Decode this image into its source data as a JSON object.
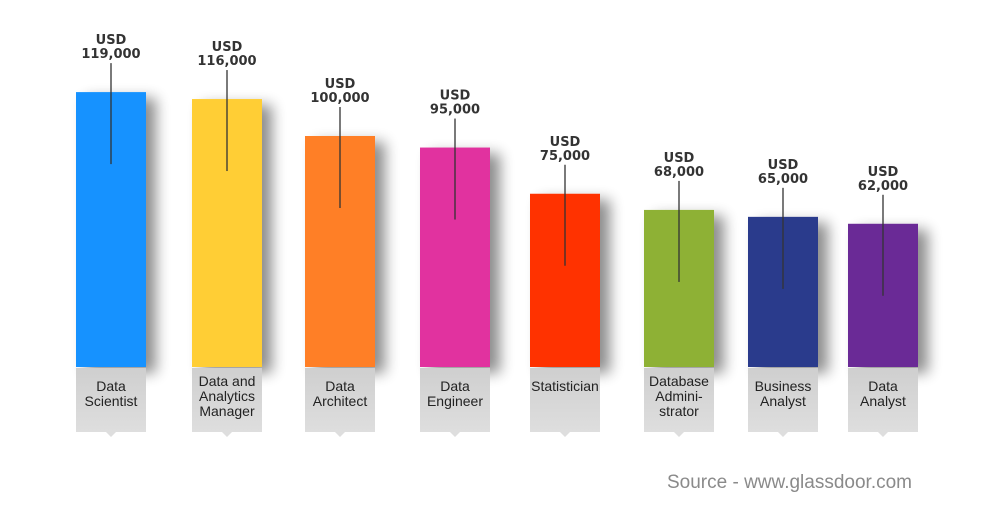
{
  "chart_data": {
    "type": "bar",
    "categories": [
      "Data Scientist",
      "Data and Analytics Manager",
      "Data Architect",
      "Data Engineer",
      "Statistician",
      "Database Administrator",
      "Business Analyst",
      "Data Analyst"
    ],
    "category_lines": [
      [
        "Data",
        "Scientist"
      ],
      [
        "Data and",
        "Analytics",
        "Manager"
      ],
      [
        "Data",
        "Architect"
      ],
      [
        "Data",
        "Engineer"
      ],
      [
        "Statistician"
      ],
      [
        "Database",
        "Admini-",
        "strator"
      ],
      [
        "Business",
        "Analyst"
      ],
      [
        "Data",
        "Analyst"
      ]
    ],
    "values": [
      119000,
      116000,
      100000,
      95000,
      75000,
      68000,
      65000,
      62000
    ],
    "value_labels": [
      [
        "USD",
        "119,000"
      ],
      [
        "USD",
        "116,000"
      ],
      [
        "USD",
        "100,000"
      ],
      [
        "USD",
        "95,000"
      ],
      [
        "USD",
        "75,000"
      ],
      [
        "USD",
        "68,000"
      ],
      [
        "USD",
        "65,000"
      ],
      [
        "USD",
        "62,000"
      ]
    ],
    "colors": [
      "#1592ff",
      "#ffce34",
      "#ff7f27",
      "#e1329f",
      "#ff3200",
      "#8eb135",
      "#293b8c",
      "#6a2a96"
    ],
    "source": "Source - www.glassdoor.com"
  }
}
